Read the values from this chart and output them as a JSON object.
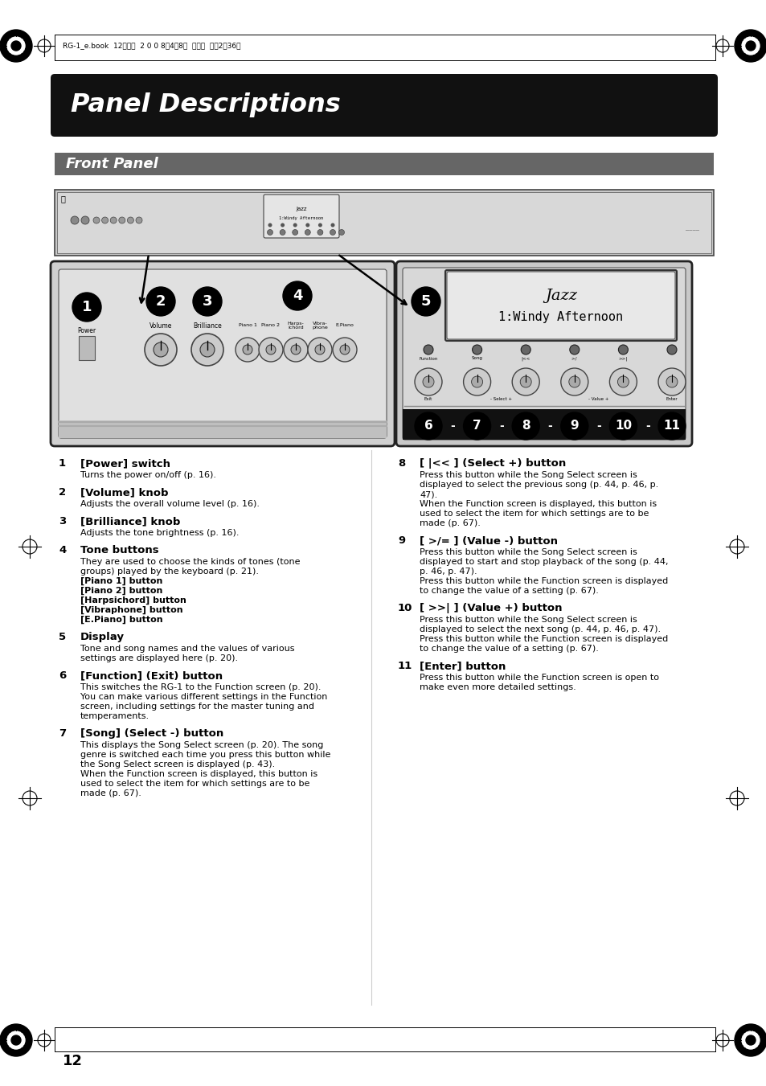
{
  "page_bg": "#ffffff",
  "header_bar_color": "#111111",
  "header_text": "Panel Descriptions",
  "header_text_color": "#ffffff",
  "subheader_bar_color": "#666666",
  "subheader_text": "Front Panel",
  "subheader_text_color": "#ffffff",
  "top_meta_text": "RG-1_e.book  12ページ  2　0　0　8年4月8日  火曜日  午後2時36分",
  "page_number": "12",
  "items": [
    {
      "num": "1",
      "title": "[Power] switch",
      "desc": "Turns the power on/off (p. 16)."
    },
    {
      "num": "2",
      "title": "[Volume] knob",
      "desc": "Adjusts the overall volume level (p. 16)."
    },
    {
      "num": "3",
      "title": "[Brilliance] knob",
      "desc": "Adjusts the tone brightness (p. 16)."
    },
    {
      "num": "4",
      "title": "Tone buttons",
      "desc": "They are used to choose the kinds of tones (tone\ngroups) played by the keyboard (p. 21).\n[Piano 1] button\n[Piano 2] button\n[Harpsichord] button\n[Vibraphone] button\n[E.Piano] button"
    },
    {
      "num": "5",
      "title": "Display",
      "desc": "Tone and song names and the values of various\nsettings are displayed here (p. 20)."
    },
    {
      "num": "6",
      "title": "[Function] (Exit) button",
      "desc": "This switches the RG-1 to the Function screen (p. 20).\nYou can make various different settings in the Function\nscreen, including settings for the master tuning and\ntemperaments."
    },
    {
      "num": "7",
      "title": "[Song] (Select -) button",
      "desc": "This displays the Song Select screen (p. 20). The song\ngenre is switched each time you press this button while\nthe Song Select screen is displayed (p. 43).\nWhen the Function screen is displayed, this button is\nused to select the item for which settings are to be\nmade (p. 67)."
    },
    {
      "num": "8",
      "title": "[ |<< ] (Select +) button",
      "desc": "Press this button while the Song Select screen is\ndisplayed to select the previous song (p. 44, p. 46, p.\n47).\nWhen the Function screen is displayed, this button is\nused to select the item for which settings are to be\nmade (p. 67)."
    },
    {
      "num": "9",
      "title": "[ >/= ] (Value -) button",
      "desc": "Press this button while the Song Select screen is\ndisplayed to start and stop playback of the song (p. 44,\np. 46, p. 47).\nPress this button while the Function screen is displayed\nto change the value of a setting (p. 67)."
    },
    {
      "num": "10",
      "title": "[ >>| ] (Value +) button",
      "desc": "Press this button while the Song Select screen is\ndisplayed to select the next song (p. 44, p. 46, p. 47).\nPress this button while the Function screen is displayed\nto change the value of a setting (p. 67)."
    },
    {
      "num": "11",
      "title": "[Enter] button",
      "desc": "Press this button while the Function screen is open to\nmake even more detailed settings."
    }
  ]
}
